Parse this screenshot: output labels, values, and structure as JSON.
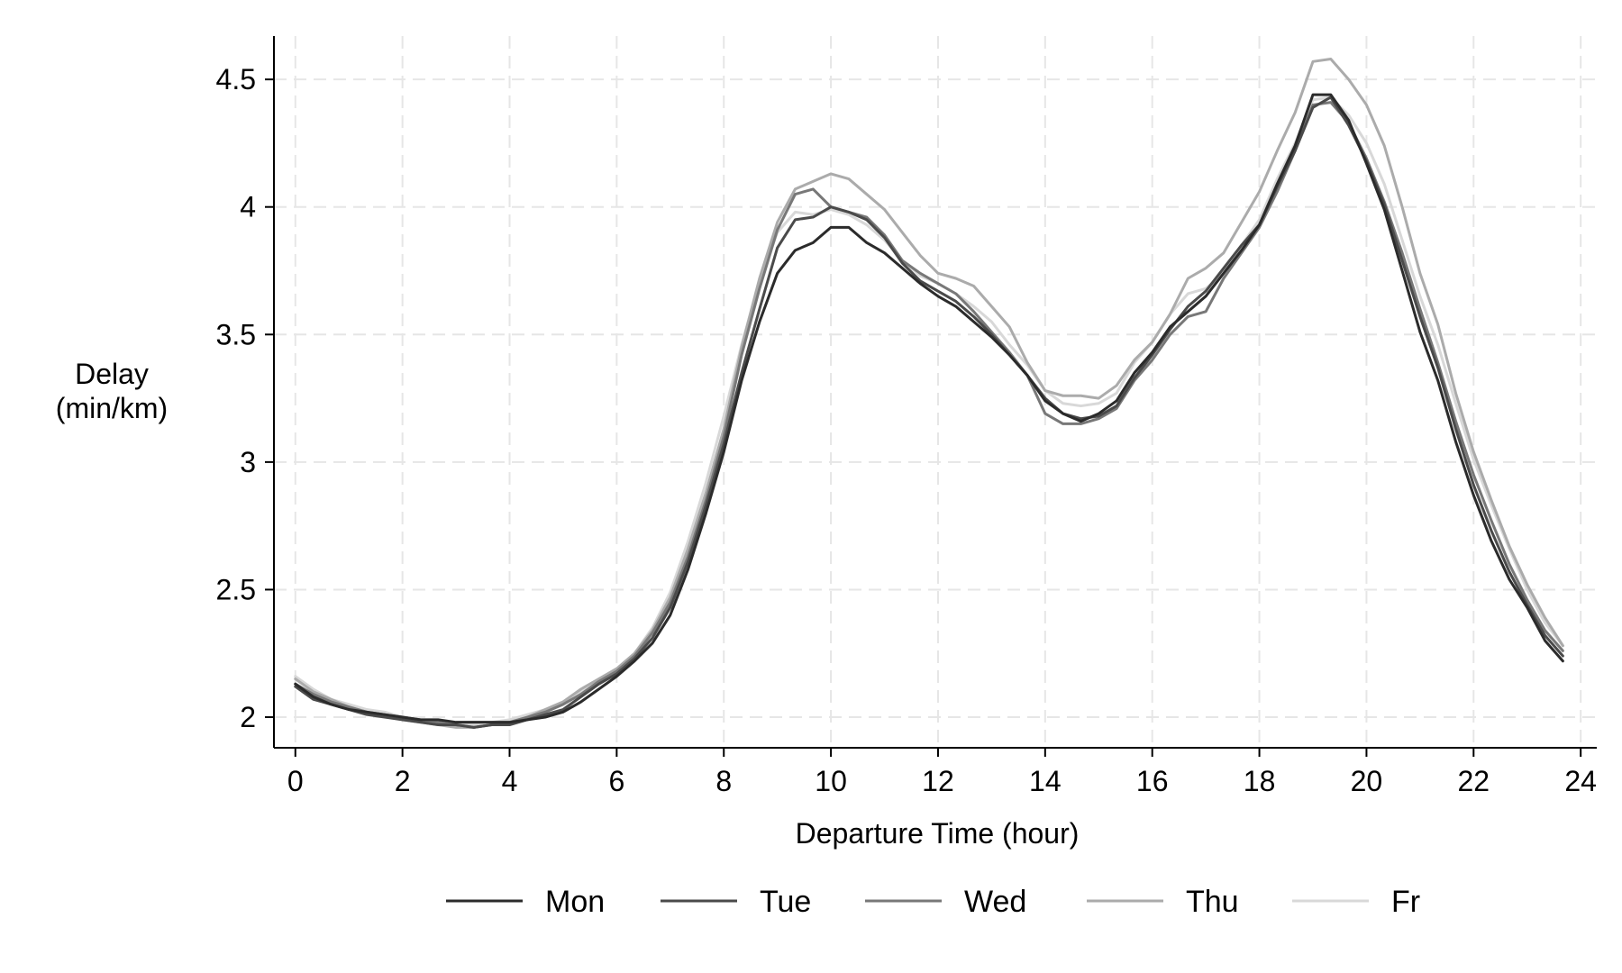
{
  "chart_data": {
    "type": "line",
    "xlabel": "Departure Time (hour)",
    "ylabel_lines": [
      "Delay",
      "(min/km)"
    ],
    "xlim": [
      -0.4,
      24.3
    ],
    "ylim": [
      1.88,
      4.67
    ],
    "xticks": [
      0,
      2,
      4,
      6,
      8,
      10,
      12,
      14,
      16,
      18,
      20,
      22,
      24
    ],
    "yticks": [
      2,
      2.5,
      3,
      3.5,
      4,
      4.5
    ],
    "ytick_labels": [
      "2",
      "2.5",
      "3",
      "3.5",
      "4",
      "4.5"
    ],
    "grid": true,
    "legend_position": "bottom",
    "x": [
      0,
      0.333,
      0.667,
      1,
      1.333,
      1.667,
      2,
      2.333,
      2.667,
      3,
      3.333,
      3.667,
      4,
      4.333,
      4.667,
      5,
      5.333,
      5.667,
      6,
      6.333,
      6.667,
      7,
      7.333,
      7.667,
      8,
      8.333,
      8.667,
      9,
      9.333,
      9.667,
      10,
      10.333,
      10.667,
      11,
      11.333,
      11.667,
      12,
      12.333,
      12.667,
      13,
      13.333,
      13.667,
      14,
      14.333,
      14.667,
      15,
      15.333,
      15.667,
      16,
      16.333,
      16.667,
      17,
      17.333,
      17.667,
      18,
      18.333,
      18.667,
      19,
      19.333,
      19.667,
      20,
      20.333,
      20.667,
      21,
      21.333,
      21.667,
      22,
      22.333,
      22.667,
      23,
      23.333,
      23.667
    ],
    "series": [
      {
        "name": "Mon",
        "color": "#2b2b2b",
        "values": [
          2.13,
          2.08,
          2.05,
          2.03,
          2.02,
          2.01,
          2.0,
          1.99,
          1.99,
          1.98,
          1.98,
          1.98,
          1.98,
          1.99,
          2.0,
          2.02,
          2.06,
          2.11,
          2.16,
          2.22,
          2.29,
          2.4,
          2.58,
          2.8,
          3.04,
          3.32,
          3.55,
          3.74,
          3.83,
          3.86,
          3.92,
          3.92,
          3.86,
          3.82,
          3.76,
          3.7,
          3.65,
          3.61,
          3.55,
          3.49,
          3.42,
          3.34,
          3.24,
          3.19,
          3.16,
          3.19,
          3.24,
          3.35,
          3.43,
          3.53,
          3.59,
          3.65,
          3.74,
          3.83,
          3.93,
          4.09,
          4.24,
          4.44,
          4.44,
          4.34,
          4.17,
          3.99,
          3.75,
          3.51,
          3.32,
          3.08,
          2.87,
          2.69,
          2.54,
          2.43,
          2.3,
          2.22
        ]
      },
      {
        "name": "Tue",
        "color": "#4a4a4a",
        "values": [
          2.12,
          2.07,
          2.05,
          2.03,
          2.01,
          2.0,
          1.99,
          1.98,
          1.97,
          1.97,
          1.96,
          1.97,
          1.97,
          1.99,
          2.01,
          2.03,
          2.08,
          2.13,
          2.17,
          2.23,
          2.31,
          2.43,
          2.61,
          2.83,
          3.07,
          3.35,
          3.6,
          3.84,
          3.95,
          3.96,
          4.0,
          3.98,
          3.95,
          3.88,
          3.78,
          3.71,
          3.67,
          3.63,
          3.57,
          3.5,
          3.42,
          3.34,
          3.25,
          3.19,
          3.17,
          3.18,
          3.22,
          3.33,
          3.42,
          3.52,
          3.61,
          3.67,
          3.76,
          3.85,
          3.93,
          4.08,
          4.22,
          4.39,
          4.43,
          4.32,
          4.18,
          4.01,
          3.79,
          3.57,
          3.37,
          3.13,
          2.91,
          2.73,
          2.57,
          2.44,
          2.32,
          2.24
        ]
      },
      {
        "name": "Wed",
        "color": "#787878",
        "values": [
          2.13,
          2.09,
          2.06,
          2.04,
          2.02,
          2.01,
          2.0,
          1.99,
          1.98,
          1.97,
          1.96,
          1.97,
          1.98,
          2.0,
          2.02,
          2.05,
          2.09,
          2.14,
          2.18,
          2.24,
          2.33,
          2.45,
          2.63,
          2.85,
          3.1,
          3.42,
          3.68,
          3.91,
          4.05,
          4.07,
          4.0,
          3.98,
          3.96,
          3.89,
          3.79,
          3.74,
          3.7,
          3.66,
          3.59,
          3.51,
          3.43,
          3.34,
          3.19,
          3.15,
          3.15,
          3.17,
          3.21,
          3.32,
          3.4,
          3.5,
          3.57,
          3.59,
          3.72,
          3.82,
          3.92,
          4.06,
          4.22,
          4.4,
          4.41,
          4.33,
          4.19,
          4.02,
          3.82,
          3.6,
          3.39,
          3.16,
          2.95,
          2.77,
          2.6,
          2.46,
          2.34,
          2.26
        ]
      },
      {
        "name": "Thu",
        "color": "#ababab",
        "values": [
          2.15,
          2.1,
          2.07,
          2.04,
          2.02,
          2.01,
          1.99,
          1.98,
          1.97,
          1.96,
          1.96,
          1.97,
          1.98,
          2.0,
          2.03,
          2.06,
          2.11,
          2.15,
          2.19,
          2.25,
          2.34,
          2.47,
          2.66,
          2.88,
          3.13,
          3.45,
          3.72,
          3.94,
          4.07,
          4.1,
          4.13,
          4.11,
          4.05,
          3.99,
          3.9,
          3.81,
          3.74,
          3.72,
          3.69,
          3.61,
          3.53,
          3.39,
          3.28,
          3.26,
          3.26,
          3.25,
          3.3,
          3.4,
          3.47,
          3.58,
          3.72,
          3.76,
          3.82,
          3.94,
          4.06,
          4.22,
          4.37,
          4.57,
          4.58,
          4.5,
          4.4,
          4.24,
          4.0,
          3.74,
          3.54,
          3.27,
          3.04,
          2.85,
          2.67,
          2.52,
          2.39,
          2.28
        ]
      },
      {
        "name": "Fr",
        "color": "#d8d8d8",
        "values": [
          2.16,
          2.11,
          2.07,
          2.05,
          2.03,
          2.02,
          2.0,
          1.99,
          1.98,
          1.97,
          1.97,
          1.98,
          1.99,
          2.01,
          2.03,
          2.06,
          2.1,
          2.15,
          2.19,
          2.25,
          2.35,
          2.49,
          2.69,
          2.92,
          3.18,
          3.46,
          3.71,
          3.9,
          3.98,
          3.97,
          3.99,
          3.97,
          3.93,
          3.87,
          3.79,
          3.73,
          3.7,
          3.66,
          3.61,
          3.55,
          3.46,
          3.38,
          3.28,
          3.23,
          3.22,
          3.23,
          3.27,
          3.39,
          3.47,
          3.58,
          3.66,
          3.68,
          3.74,
          3.85,
          3.95,
          4.11,
          4.25,
          4.42,
          4.43,
          4.36,
          4.25,
          4.09,
          3.87,
          3.65,
          3.46,
          3.23,
          3.01,
          2.83,
          2.66,
          2.5,
          2.37,
          2.28
        ]
      }
    ]
  }
}
